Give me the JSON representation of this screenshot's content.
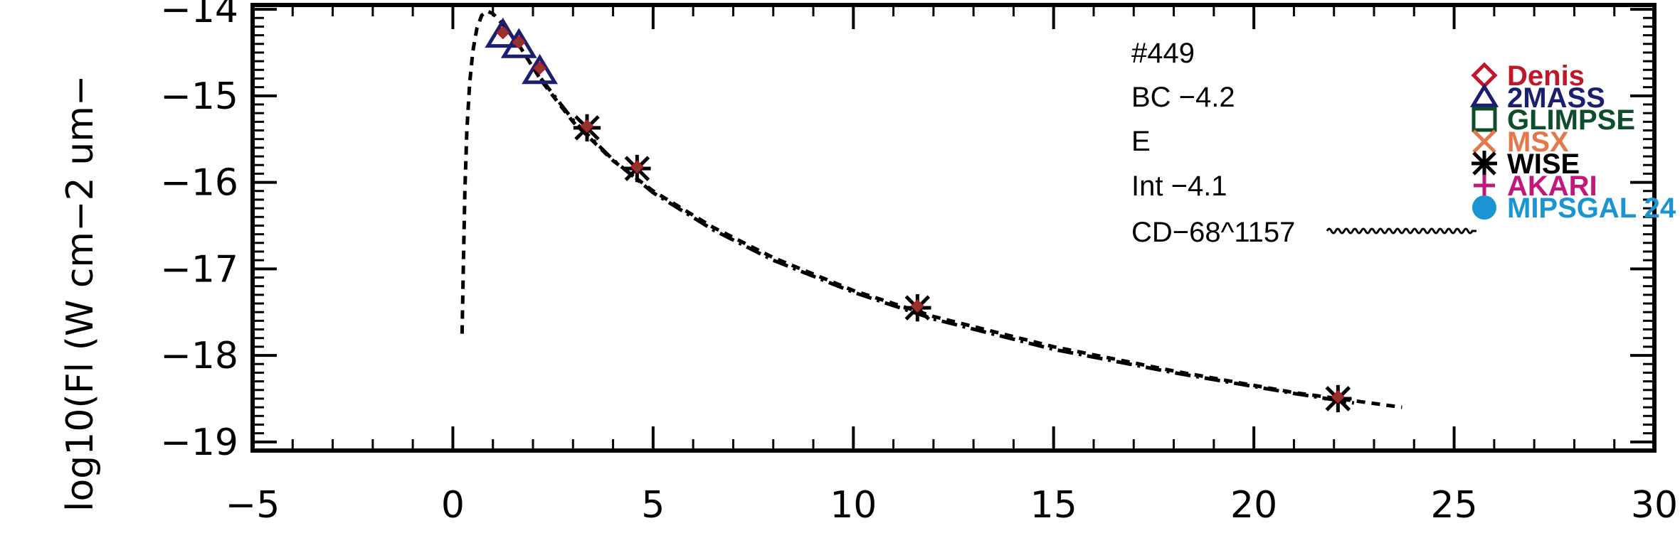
{
  "chart_data": {
    "type": "scatter",
    "title": "",
    "xlabel": "",
    "ylabel": "log10(Fl (W cm−2 um−",
    "xlim": [
      -5,
      30
    ],
    "ylim": [
      -19.1,
      -13.95
    ],
    "grid": false,
    "x_ticks": [
      -5,
      0,
      5,
      10,
      15,
      20,
      25,
      30
    ],
    "x_tick_labels": [
      "−5",
      "0",
      "5",
      "10",
      "15",
      "20",
      "25",
      "30"
    ],
    "y_ticks": [
      -19,
      -18,
      -17,
      -16,
      -15,
      -14
    ],
    "y_tick_labels": [
      "−19",
      "−18",
      "−17",
      "−16",
      "−15",
      "−14"
    ],
    "annotations": [
      "#449",
      "BC −4.2",
      "E",
      "Int −4.1",
      "CD−68^1157"
    ],
    "legend_position": "right",
    "legend": [
      {
        "name": "Denis",
        "marker": "diamond",
        "color": "#c0182a"
      },
      {
        "name": "2MASS",
        "marker": "triangle",
        "color": "#1c1f6e"
      },
      {
        "name": "GLIMPSE",
        "marker": "square",
        "color": "#0e4d2c"
      },
      {
        "name": "MSX",
        "marker": "x",
        "color": "#e5784a"
      },
      {
        "name": "WISE",
        "marker": "asterisk",
        "color": "#000000"
      },
      {
        "name": "AKARI",
        "marker": "plus",
        "color": "#c2187a"
      },
      {
        "name": "MIPSGAL 24",
        "marker": "circle",
        "color": "#1a95d2"
      }
    ],
    "series": [
      {
        "name": "2MASS",
        "marker": "triangle",
        "color": "#1c1f6e",
        "x": [
          1.25,
          1.65,
          2.17
        ],
        "y": [
          -14.3,
          -14.42,
          -14.72
        ]
      },
      {
        "name": "WISE",
        "marker": "asterisk",
        "color": "#000000",
        "x": [
          3.35,
          4.6,
          11.6,
          22.1
        ],
        "y": [
          -15.37,
          -15.84,
          -17.45,
          -18.5
        ]
      },
      {
        "name": "Denis",
        "marker": "diamond",
        "color": "#c0182a",
        "style": "small-filled",
        "x": [
          1.25,
          1.65,
          2.17,
          3.35,
          4.6,
          11.6,
          22.1
        ],
        "y": [
          -14.27,
          -14.38,
          -14.68,
          -15.35,
          -15.82,
          -17.43,
          -18.48
        ]
      },
      {
        "name": "model_dashed",
        "line": "dashed",
        "color": "#000000",
        "x": [
          0.23,
          0.26,
          0.3,
          0.35,
          0.42,
          0.5,
          0.6,
          0.72,
          0.85,
          1.0,
          1.3,
          1.7,
          2.2,
          3.0,
          4.0,
          5.0,
          6.5,
          8.0,
          10.0,
          12.0,
          15.0,
          18.0,
          21.0,
          23.7
        ],
        "y": [
          -17.75,
          -17.0,
          -16.1,
          -15.4,
          -14.85,
          -14.48,
          -14.22,
          -14.07,
          -14.02,
          -14.05,
          -14.2,
          -14.45,
          -14.82,
          -15.3,
          -15.75,
          -16.1,
          -16.52,
          -16.87,
          -17.25,
          -17.55,
          -17.9,
          -18.18,
          -18.43,
          -18.6
        ]
      },
      {
        "name": "model_dashdot",
        "line": "dashdot",
        "color": "#000000",
        "x": [
          2.2,
          3.0,
          4.0,
          5.0,
          6.5,
          8.0,
          10.0,
          12.0,
          15.0,
          18.0,
          21.0,
          22.5
        ],
        "y": [
          -14.8,
          -15.28,
          -15.74,
          -16.12,
          -16.55,
          -16.9,
          -17.27,
          -17.58,
          -17.93,
          -18.2,
          -18.44,
          -18.55
        ]
      }
    ]
  }
}
